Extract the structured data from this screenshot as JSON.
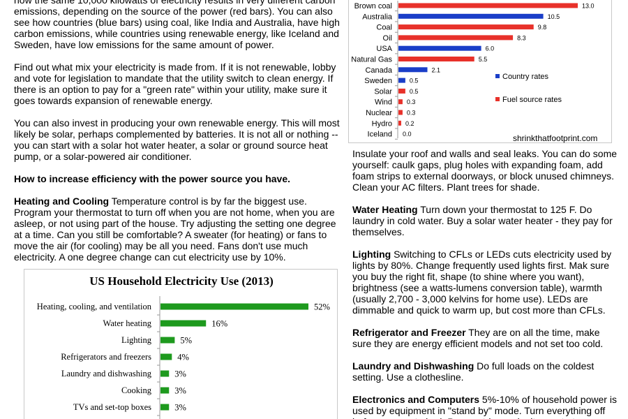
{
  "left": {
    "p1": "how the same 10,000 kilowatts of electricity results in very different carbon emissions, depending on the source of the power (red bars).  You can also see how countries (blue bars) using coal, like India and Australia, have high carbon emissions, while countries using renewable energy, like Iceland and Sweden, have low emissions for the same amount of power.",
    "p2": "Find out what mix your electricity is made from.  If it is not renewable, lobby and vote for legislation to mandate that the utility switch to clean energy.  If there is an option to pay for a \"green rate\" within your utility, make sure it goes towards expansion of renewable energy.",
    "p3": "You can also invest in producing your own renewable energy.  This will most likely be solar, perhaps complemented by batteries.  It is not all or nothing -- you can start with a solar hot water heater, a solar or ground source heat pump, or a solar-powered air conditioner.",
    "heading": "How to increase efficiency with the power source you have.",
    "heating_title": "Heating and Cooling",
    "heating_body": "  Temperature control is by far the biggest use. Program your thermostat to turn off when you are not home, when you are asleep, or not using part of the house.  Try adjusting the setting one degree at a time.  Can you still be comfortable?  A sweater (for heating) or fans to move the air (for cooling) may be all you need.  Fans don't use much electricity.  A one degree change can cut electricity use by 10%."
  },
  "right": {
    "insulate": "Insulate your roof and walls and seal leaks.  You can do some yourself: caulk gaps, plug holes with expanding foam, add foam strips to external doorways, or block unused chimneys.  Clean your AC filters.  Plant trees for shade.",
    "water_title": "Water Heating",
    "water_body": "  Turn down your thermostat to 125 F.  Do laundry in cold water.  Buy a solar water heater - they pay for themselves.",
    "lighting_title": "Lighting",
    "lighting_body": "  Switching to CFLs or LEDs cuts electricity used by lights by 80%.  Change frequently used lights first.  Mak sure you buy the right fit, shape (to shine where you want), brightness (see a watts-lumens conversion table), warmth (usually 2,700 - 3,000 kelvins for home use).   LEDs are dimmable and quick to warm up, but cost more than CFLs.",
    "fridge_title": "Refrigerator and Freezer",
    "fridge_body": "   They are on all the time, make sure they are energy efficient models and not set too cold.",
    "laundry_title": "Laundry and Dishwashing",
    "laundry_body": "  Do full loads on the coldest setting.  Use a clothesline.",
    "elec_title": "Electronics and Computers",
    "elec_body": "  5%-10% of household power is used by equipment in \"stand by\" mode.  Turn everything off before you go to bed.  Power strips make it easy to turn"
  },
  "chart_data": [
    {
      "type": "bar",
      "orientation": "horizontal",
      "categories": [
        "Brown coal",
        "Australia",
        "Coal",
        "Oil",
        "USA",
        "Natural Gas",
        "Canada",
        "Sweden",
        "Solar",
        "Wind",
        "Nuclear",
        "Hydro",
        "Iceland"
      ],
      "values": [
        13.0,
        10.5,
        9.8,
        8.3,
        6.0,
        5.5,
        2.1,
        0.5,
        0.5,
        0.3,
        0.3,
        0.2,
        0.0
      ],
      "value_labels": [
        "13.0",
        "10.5",
        "9.8",
        "8.3",
        "6.0",
        "5.5",
        "2.1",
        "0.5",
        "0.5",
        "0.3",
        "0.3",
        "0.2",
        "0.0"
      ],
      "kinds": [
        "fuel",
        "country",
        "fuel",
        "fuel",
        "country",
        "fuel",
        "country",
        "country",
        "fuel",
        "fuel",
        "fuel",
        "fuel",
        "country"
      ],
      "legend": [
        {
          "label": "Country rates",
          "color": "#1a3ec8"
        },
        {
          "label": "Fuel source rates",
          "color": "#e8312a"
        }
      ],
      "colors": {
        "country": "#1a3ec8",
        "fuel": "#e8312a"
      },
      "source": "shrinkthatfootprint.com",
      "xlim": [
        0,
        14
      ]
    },
    {
      "type": "bar",
      "orientation": "horizontal",
      "title": "US Household Electricity Use (2013)",
      "categories": [
        "Heating, cooling, and ventilation",
        "Water heating",
        "Lighting",
        "Refrigerators and freezers",
        "Laundry and dishwashing",
        "Cooking",
        "TVs and set-top boxes"
      ],
      "values": [
        52,
        16,
        5,
        4,
        3,
        3,
        3
      ],
      "value_labels": [
        "52%",
        "16%",
        "5%",
        "4%",
        "3%",
        "3%",
        "3%"
      ],
      "color": "#1e9a1e",
      "xlim": [
        0,
        60
      ]
    }
  ]
}
